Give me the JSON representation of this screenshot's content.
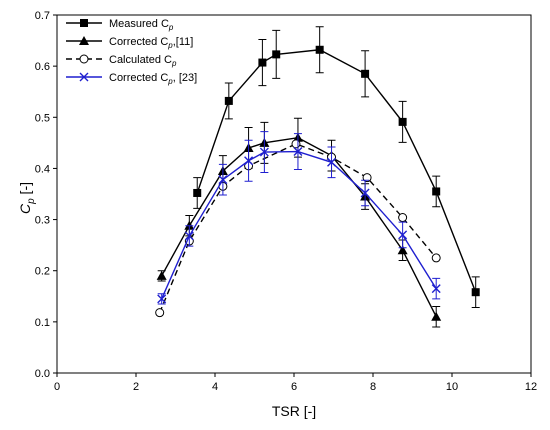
{
  "chart_data": {
    "type": "line",
    "xlabel": "TSR [-]",
    "ylabel": "Cp [-]",
    "ylabel_main": "C",
    "ylabel_sub": "p",
    "ylabel_suffix": " [-]",
    "xlim": [
      0,
      12
    ],
    "ylim": [
      0,
      0.7
    ],
    "xticks": [
      0,
      2,
      4,
      6,
      8,
      10,
      12
    ],
    "yticks": [
      0.0,
      0.1,
      0.2,
      0.3,
      0.4,
      0.5,
      0.6,
      0.7
    ],
    "xtick_labels": [
      "0",
      "2",
      "4",
      "6",
      "8",
      "10",
      "12"
    ],
    "ytick_labels": [
      "0.0",
      "0.1",
      "0.2",
      "0.3",
      "0.4",
      "0.5",
      "0.6",
      "0.7"
    ],
    "legend_position": "top-left",
    "grid": false,
    "series": [
      {
        "name": "Measured Cp",
        "legend_main": "Measured C",
        "legend_sub": "p",
        "legend_suffix": "",
        "color": "#000000",
        "marker": "filled-square",
        "dashed": false,
        "x": [
          3.55,
          4.35,
          5.2,
          5.55,
          6.65,
          7.8,
          8.75,
          9.6,
          10.6
        ],
        "y": [
          0.352,
          0.532,
          0.607,
          0.623,
          0.632,
          0.585,
          0.491,
          0.355,
          0.158
        ],
        "err": [
          0.03,
          0.035,
          0.045,
          0.047,
          0.045,
          0.045,
          0.04,
          0.03,
          0.03
        ]
      },
      {
        "name": "Corrected Cp,[11]",
        "legend_main": "Corrected C",
        "legend_sub": "p",
        "legend_suffix": ",[11]",
        "color": "#000000",
        "marker": "filled-triangle",
        "dashed": false,
        "x": [
          2.65,
          3.35,
          4.2,
          4.85,
          5.25,
          6.1,
          6.95,
          7.8,
          8.75,
          9.6
        ],
        "y": [
          0.19,
          0.288,
          0.395,
          0.44,
          0.45,
          0.46,
          0.425,
          0.345,
          0.24,
          0.11
        ],
        "err": [
          0.01,
          0.02,
          0.03,
          0.04,
          0.04,
          0.038,
          0.03,
          0.025,
          0.02,
          0.02
        ]
      },
      {
        "name": "Calculated Cp",
        "legend_main": "Calculated C",
        "legend_sub": "p",
        "legend_suffix": "",
        "color": "#000000",
        "marker": "open-circle",
        "dashed": true,
        "x": [
          2.6,
          3.35,
          4.2,
          4.85,
          6.05,
          6.95,
          7.85,
          8.75,
          9.6
        ],
        "y": [
          0.118,
          0.258,
          0.365,
          0.405,
          0.448,
          0.422,
          0.382,
          0.304,
          0.225
        ],
        "err": null
      },
      {
        "name": "Corrected Cp, [23]",
        "legend_main": "Corrected C",
        "legend_sub": "p",
        "legend_suffix": ", [23]",
        "color": "#1f1fcf",
        "marker": "cross",
        "dashed": false,
        "x": [
          2.65,
          3.35,
          4.2,
          4.85,
          5.25,
          6.1,
          6.95,
          7.8,
          8.75,
          9.6
        ],
        "y": [
          0.145,
          0.268,
          0.378,
          0.415,
          0.432,
          0.433,
          0.412,
          0.352,
          0.27,
          0.165
        ],
        "err": [
          0.01,
          0.02,
          0.03,
          0.04,
          0.04,
          0.035,
          0.03,
          0.025,
          0.025,
          0.02
        ]
      }
    ]
  }
}
